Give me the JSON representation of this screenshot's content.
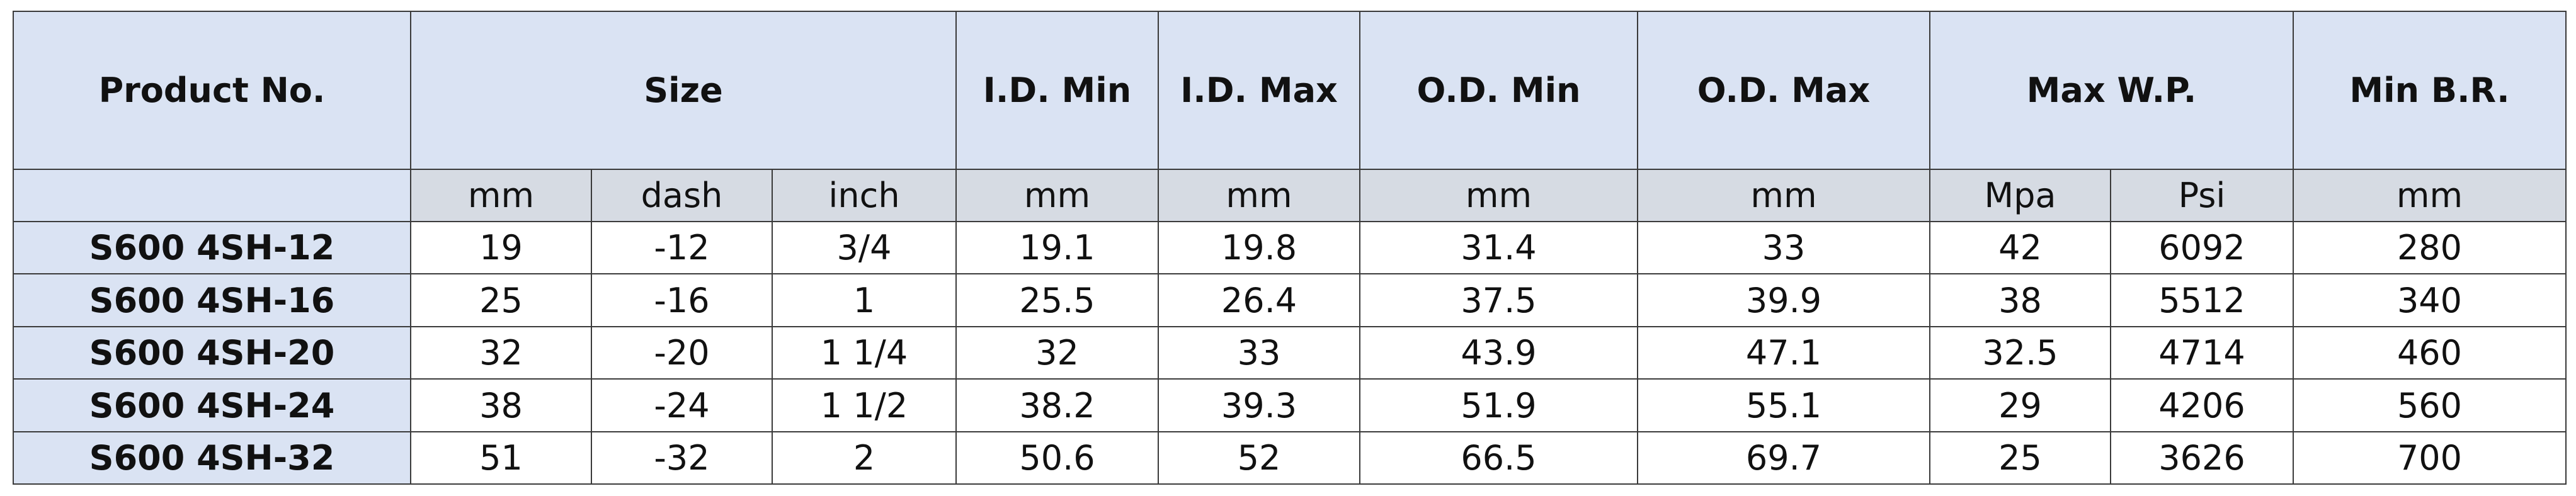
{
  "table": {
    "header": [
      "Product No.",
      "Size",
      "I.D. Min",
      "I.D. Max",
      "O.D. Min",
      "O.D. Max",
      "Max W.P.",
      "Min B.R."
    ],
    "units": [
      "mm",
      "dash",
      "inch",
      "mm",
      "mm",
      "mm",
      "mm",
      "Mpa",
      "Psi",
      "mm"
    ],
    "rows": [
      [
        "S600 4SH-12",
        "19",
        "-12",
        "3/4",
        "19.1",
        "19.8",
        "31.4",
        "33",
        "42",
        "6092",
        "280"
      ],
      [
        "S600 4SH-16",
        "25",
        "-16",
        "1",
        "25.5",
        "26.4",
        "37.5",
        "39.9",
        "38",
        "5512",
        "340"
      ],
      [
        "S600 4SH-20",
        "32",
        "-20",
        "1 1/4",
        "32",
        "33",
        "43.9",
        "47.1",
        "32.5",
        "4714",
        "460"
      ],
      [
        "S600 4SH-24",
        "38",
        "-24",
        "1 1/2",
        "38.2",
        "39.3",
        "51.9",
        "55.1",
        "29",
        "4206",
        "560"
      ],
      [
        "S600 4SH-32",
        "51",
        "-32",
        "2",
        "50.6",
        "52",
        "66.5",
        "69.7",
        "25",
        "3626",
        "700"
      ]
    ]
  }
}
